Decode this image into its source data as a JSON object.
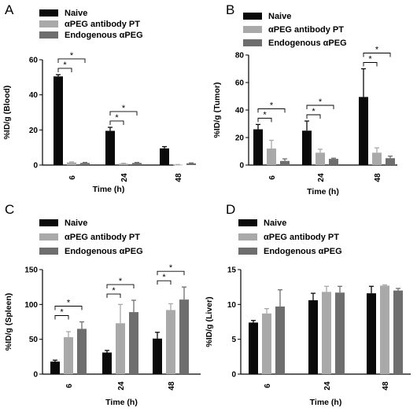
{
  "colors": {
    "naive": "#0a0a0a",
    "antibody": "#a9a9a9",
    "endogenous": "#6e6e6e"
  },
  "chart_data": [
    {
      "panel": "A",
      "type": "bar",
      "categories": [
        "6",
        "24",
        "48"
      ],
      "xlabel": "Time (h)",
      "ylabel": "%ID/g (Blood)",
      "ylim": [
        0,
        60
      ],
      "yticks": [
        0,
        20,
        40,
        60
      ],
      "series": [
        {
          "name": "Naive",
          "values": [
            50.5,
            19.5,
            9.5
          ],
          "errors": [
            1.0,
            2.0,
            1.0
          ]
        },
        {
          "name": "αPEG antibody PT",
          "values": [
            1.5,
            0.8,
            0.2
          ],
          "errors": [
            0.3,
            0.2,
            0.1
          ]
        },
        {
          "name": "Endogenous αPEG",
          "values": [
            1.2,
            1.2,
            1.0
          ],
          "errors": [
            0.3,
            0.3,
            0.2
          ]
        }
      ],
      "brackets": [
        {
          "category": 0,
          "from": 0,
          "to": 1,
          "level": 1,
          "label": "*"
        },
        {
          "category": 0,
          "from": 0,
          "to": 2,
          "level": 2,
          "label": "*"
        },
        {
          "category": 1,
          "from": 0,
          "to": 1,
          "level": 1,
          "label": "*"
        },
        {
          "category": 1,
          "from": 0,
          "to": 2,
          "level": 2,
          "label": "*"
        }
      ]
    },
    {
      "panel": "B",
      "type": "bar",
      "categories": [
        "6",
        "24",
        "48"
      ],
      "xlabel": "Time (h)",
      "ylabel": "%ID/g (Tumor)",
      "ylim": [
        0,
        80
      ],
      "yticks": [
        0,
        20,
        40,
        60,
        80
      ],
      "series": [
        {
          "name": "Naive",
          "values": [
            26,
            25,
            49.5
          ],
          "errors": [
            3.5,
            7.0,
            20.5
          ]
        },
        {
          "name": "αPEG antibody PT",
          "values": [
            12,
            9,
            9
          ],
          "errors": [
            6,
            2.5,
            3.5
          ]
        },
        {
          "name": "Endogenous αPEG",
          "values": [
            3,
            4.5,
            5
          ],
          "errors": [
            1.5,
            0.5,
            1.5
          ]
        }
      ],
      "brackets": [
        {
          "category": 0,
          "from": 0,
          "to": 1,
          "level": 1,
          "label": "*"
        },
        {
          "category": 0,
          "from": 0,
          "to": 2,
          "level": 2,
          "label": "*"
        },
        {
          "category": 1,
          "from": 0,
          "to": 1,
          "level": 1,
          "label": "*"
        },
        {
          "category": 1,
          "from": 0,
          "to": 2,
          "level": 2,
          "label": "*"
        },
        {
          "category": 2,
          "from": 0,
          "to": 1,
          "level": 1,
          "label": "*"
        },
        {
          "category": 2,
          "from": 0,
          "to": 2,
          "level": 2,
          "label": "*"
        }
      ]
    },
    {
      "panel": "C",
      "type": "bar",
      "categories": [
        "6",
        "24",
        "48"
      ],
      "xlabel": "Time (h)",
      "ylabel": "%ID/g (Spleen)",
      "ylim": [
        0,
        150
      ],
      "yticks": [
        0,
        50,
        100,
        150
      ],
      "series": [
        {
          "name": "Naive",
          "values": [
            18,
            31,
            51
          ],
          "errors": [
            2,
            3,
            9
          ]
        },
        {
          "name": "αPEG antibody PT",
          "values": [
            53,
            73,
            92
          ],
          "errors": [
            8,
            27,
            9
          ]
        },
        {
          "name": "Endogenous αPEG",
          "values": [
            65,
            89,
            107
          ],
          "errors": [
            10,
            17,
            18
          ]
        }
      ],
      "brackets": [
        {
          "category": 0,
          "from": 0,
          "to": 1,
          "level": 1,
          "label": "*"
        },
        {
          "category": 0,
          "from": 0,
          "to": 2,
          "level": 2,
          "label": "*"
        },
        {
          "category": 1,
          "from": 0,
          "to": 1,
          "level": 1,
          "label": "*"
        },
        {
          "category": 1,
          "from": 0,
          "to": 2,
          "level": 2,
          "label": "*"
        },
        {
          "category": 2,
          "from": 0,
          "to": 1,
          "level": 1,
          "label": "*"
        },
        {
          "category": 2,
          "from": 0,
          "to": 2,
          "level": 2,
          "label": "*"
        }
      ]
    },
    {
      "panel": "D",
      "type": "bar",
      "categories": [
        "6",
        "24",
        "48"
      ],
      "xlabel": "Time (h)",
      "ylabel": "%ID/g (Liver)",
      "ylim": [
        0,
        15
      ],
      "yticks": [
        0,
        5,
        10,
        15
      ],
      "series": [
        {
          "name": "Naive",
          "values": [
            7.4,
            10.6,
            11.6
          ],
          "errors": [
            0.3,
            1.0,
            1.0
          ]
        },
        {
          "name": "αPEG antibody PT",
          "values": [
            8.7,
            11.8,
            12.7
          ],
          "errors": [
            0.7,
            0.8,
            0.1
          ]
        },
        {
          "name": "Endogenous αPEG",
          "values": [
            9.7,
            11.7,
            12.0
          ],
          "errors": [
            2.4,
            0.9,
            0.3
          ]
        }
      ],
      "brackets": []
    }
  ]
}
